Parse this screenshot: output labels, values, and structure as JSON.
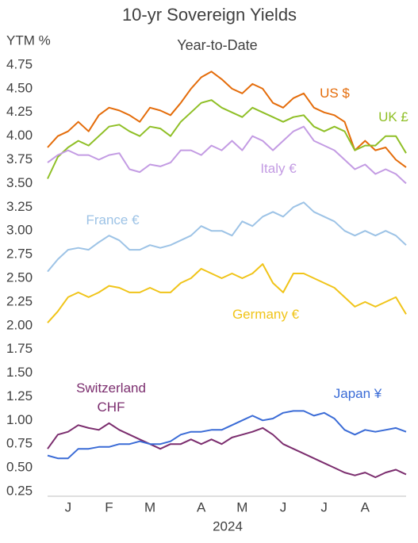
{
  "chart_data": {
    "type": "line",
    "title": "10-yr Sovereign Yields",
    "subtitle": "Year-to-Date",
    "ylabel": "YTM %",
    "xlabel": "2024",
    "categories": [
      null,
      null,
      "J",
      null,
      null,
      null,
      "F",
      null,
      null,
      null,
      "M",
      null,
      null,
      null,
      null,
      "A",
      null,
      null,
      null,
      "M",
      null,
      null,
      null,
      "J",
      null,
      null,
      null,
      "J",
      null,
      null,
      null,
      "A",
      null,
      null,
      null,
      null
    ],
    "ylim": [
      0.2,
      4.8
    ],
    "yticks": [
      0.25,
      {
        "value": 0.5,
        "label": "0.50"
      },
      0.75,
      {
        "value": 1,
        "label": "1.00"
      },
      1.25,
      {
        "value": 1.5,
        "label": "1.50"
      },
      1.75,
      {
        "value": 2,
        "label": "2.00"
      },
      2.25,
      {
        "value": 2.5,
        "label": "2.50"
      },
      2.75,
      {
        "value": 3,
        "label": "3.00"
      },
      3.25,
      {
        "value": 3.5,
        "label": "3.50"
      },
      3.75,
      {
        "value": 4,
        "label": "4.00"
      },
      4.25,
      {
        "value": 4.5,
        "label": "4.50"
      },
      4.75
    ],
    "grid": false,
    "series": [
      {
        "name": "US $",
        "color": "#e46c0a",
        "values": [
          3.88,
          4.0,
          4.05,
          4.15,
          4.05,
          4.22,
          4.3,
          4.27,
          4.22,
          4.15,
          4.3,
          4.27,
          4.22,
          4.35,
          4.5,
          4.62,
          4.68,
          4.6,
          4.5,
          4.45,
          4.55,
          4.5,
          4.35,
          4.3,
          4.4,
          4.45,
          4.3,
          4.25,
          4.22,
          4.15,
          3.85,
          3.95,
          3.85,
          3.88,
          3.75,
          3.67
        ]
      },
      {
        "name": "UK £",
        "color": "#8fbf26",
        "values": [
          3.55,
          3.78,
          3.88,
          3.95,
          3.9,
          4.0,
          4.1,
          4.12,
          4.05,
          4.0,
          4.1,
          4.08,
          4.0,
          4.15,
          4.25,
          4.35,
          4.38,
          4.3,
          4.25,
          4.2,
          4.3,
          4.25,
          4.2,
          4.15,
          4.2,
          4.22,
          4.1,
          4.05,
          4.1,
          4.05,
          3.85,
          3.9,
          3.9,
          4.0,
          4.0,
          3.82
        ]
      },
      {
        "name": "Italy €",
        "color": "#c39be3",
        "values": [
          3.72,
          3.8,
          3.85,
          3.8,
          3.8,
          3.75,
          3.8,
          3.82,
          3.65,
          3.62,
          3.7,
          3.68,
          3.72,
          3.85,
          3.85,
          3.8,
          3.9,
          3.85,
          3.95,
          3.85,
          4.0,
          3.95,
          3.85,
          3.95,
          4.05,
          4.1,
          3.95,
          3.9,
          3.85,
          3.75,
          3.65,
          3.7,
          3.6,
          3.65,
          3.6,
          3.5
        ]
      },
      {
        "name": "France €",
        "color": "#9dc3e6",
        "values": [
          2.57,
          2.7,
          2.8,
          2.82,
          2.8,
          2.88,
          2.95,
          2.9,
          2.8,
          2.8,
          2.85,
          2.82,
          2.85,
          2.9,
          2.95,
          3.05,
          3.0,
          3.0,
          2.95,
          3.1,
          3.05,
          3.15,
          3.2,
          3.15,
          3.25,
          3.3,
          3.2,
          3.15,
          3.1,
          3.0,
          2.95,
          3.0,
          2.95,
          3.0,
          2.95,
          2.85
        ]
      },
      {
        "name": "Germany €",
        "color": "#f0c419",
        "values": [
          2.03,
          2.15,
          2.3,
          2.35,
          2.3,
          2.35,
          2.42,
          2.4,
          2.35,
          2.35,
          2.4,
          2.35,
          2.35,
          2.45,
          2.5,
          2.6,
          2.55,
          2.5,
          2.55,
          2.5,
          2.55,
          2.65,
          2.45,
          2.35,
          2.55,
          2.55,
          2.5,
          2.45,
          2.4,
          2.3,
          2.2,
          2.25,
          2.2,
          2.25,
          2.3,
          2.12
        ]
      },
      {
        "name": "Switzerland CHF",
        "color": "#7b2d6e",
        "values": [
          0.7,
          0.85,
          0.88,
          0.95,
          0.92,
          0.9,
          0.97,
          0.9,
          0.85,
          0.8,
          0.75,
          0.7,
          0.75,
          0.75,
          0.8,
          0.75,
          0.8,
          0.75,
          0.82,
          0.85,
          0.88,
          0.92,
          0.85,
          0.75,
          0.7,
          0.65,
          0.6,
          0.55,
          0.5,
          0.45,
          0.42,
          0.45,
          0.4,
          0.45,
          0.48,
          0.43
        ]
      },
      {
        "name": "Japan ¥",
        "color": "#3a6bd6",
        "values": [
          0.63,
          0.6,
          0.6,
          0.7,
          0.7,
          0.72,
          0.72,
          0.75,
          0.75,
          0.78,
          0.75,
          0.75,
          0.78,
          0.85,
          0.88,
          0.88,
          0.9,
          0.9,
          0.95,
          1.0,
          1.05,
          1.0,
          1.02,
          1.08,
          1.1,
          1.1,
          1.05,
          1.08,
          1.02,
          0.9,
          0.85,
          0.9,
          0.88,
          0.9,
          0.92,
          0.88
        ]
      }
    ]
  }
}
